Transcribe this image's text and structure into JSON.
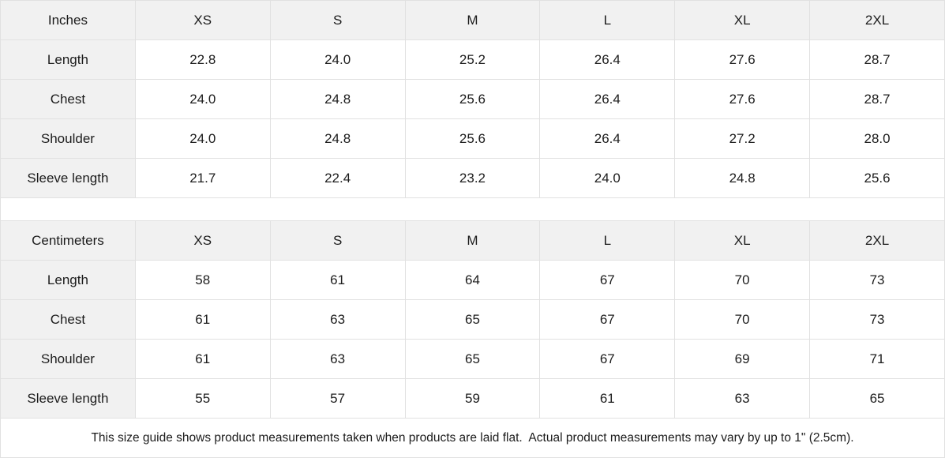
{
  "colors": {
    "header_background": "#f1f1f1",
    "border": "#e1e1e1",
    "text": "#1c1c1c",
    "page_background": "#ffffff"
  },
  "tables": [
    {
      "unit_label": "Inches",
      "sizes": [
        "XS",
        "S",
        "M",
        "L",
        "XL",
        "2XL"
      ],
      "rows": [
        {
          "label": "Length",
          "values": [
            "22.8",
            "24.0",
            "25.2",
            "26.4",
            "27.6",
            "28.7"
          ]
        },
        {
          "label": "Chest",
          "values": [
            "24.0",
            "24.8",
            "25.6",
            "26.4",
            "27.6",
            "28.7"
          ]
        },
        {
          "label": "Shoulder",
          "values": [
            "24.0",
            "24.8",
            "25.6",
            "26.4",
            "27.2",
            "28.0"
          ]
        },
        {
          "label": "Sleeve length",
          "values": [
            "21.7",
            "22.4",
            "23.2",
            "24.0",
            "24.8",
            "25.6"
          ]
        }
      ]
    },
    {
      "unit_label": "Centimeters",
      "sizes": [
        "XS",
        "S",
        "M",
        "L",
        "XL",
        "2XL"
      ],
      "rows": [
        {
          "label": "Length",
          "values": [
            "58",
            "61",
            "64",
            "67",
            "70",
            "73"
          ]
        },
        {
          "label": "Chest",
          "values": [
            "61",
            "63",
            "65",
            "67",
            "70",
            "73"
          ]
        },
        {
          "label": "Shoulder",
          "values": [
            "61",
            "63",
            "65",
            "67",
            "69",
            "71"
          ]
        },
        {
          "label": "Sleeve length",
          "values": [
            "55",
            "57",
            "59",
            "61",
            "63",
            "65"
          ]
        }
      ]
    }
  ],
  "footer": {
    "note": "This size guide shows product measurements taken when products are laid flat.  Actual product measurements may vary by up to 1\" (2.5cm)."
  }
}
